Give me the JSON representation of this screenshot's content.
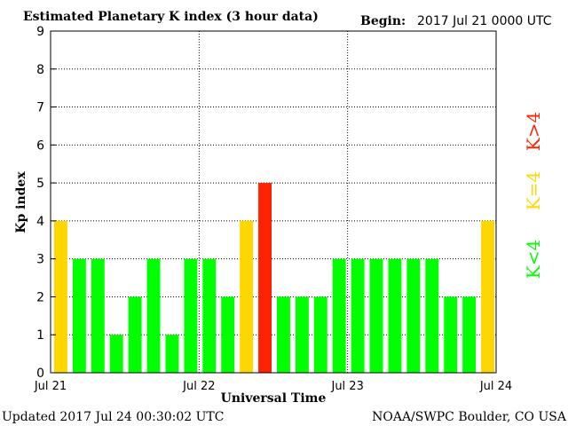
{
  "header": {
    "title": "Estimated Planetary K index (3 hour data)",
    "begin_label": "Begin:",
    "begin_value": "2017 Jul 21 0000 UTC"
  },
  "footer": {
    "updated": "Updated 2017 Jul 24 00:30:02 UTC",
    "source": "NOAA/SWPC Boulder, CO USA"
  },
  "legend": {
    "low": "K<4",
    "eq": "K=4",
    "high": "K>4"
  },
  "colors": {
    "low": "#00ff00",
    "eq": "#ffd700",
    "high": "#ff2200",
    "grid": "#000000"
  },
  "chart_data": {
    "type": "bar",
    "title": "Estimated Planetary K index (3 hour data)",
    "xlabel": "Universal Time",
    "ylabel": "Kp index",
    "ylim": [
      0,
      9
    ],
    "yticks": [
      "0",
      "1",
      "2",
      "3",
      "4",
      "5",
      "6",
      "7",
      "8",
      "9"
    ],
    "xticks": [
      "Jul 21",
      "Jul 22",
      "Jul 23",
      "Jul 24"
    ],
    "grid": true,
    "values": [
      4,
      3,
      3,
      1,
      2,
      3,
      1,
      3,
      3,
      2,
      4,
      5,
      2,
      2,
      2,
      3,
      3,
      3,
      3,
      3,
      3,
      2,
      2,
      4
    ]
  }
}
